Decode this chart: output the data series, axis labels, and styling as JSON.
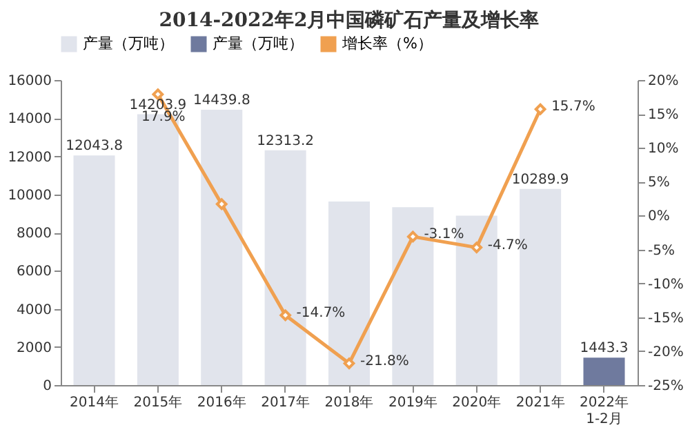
{
  "chart_data": {
    "type": "bar",
    "title": "2014-2022年2月中国磷矿石产量及增长率",
    "categories": [
      "2014年",
      "2015年",
      "2016年",
      "2017年",
      "2018年",
      "2019年",
      "2020年",
      "2021年",
      "2022年\n1-2月"
    ],
    "series": [
      {
        "name": "产量（万吨）",
        "color": "#e1e4ec",
        "values": [
          12043.8,
          14203.9,
          14439.8,
          12313.2,
          9630,
          9330,
          8890,
          10289.9,
          null
        ],
        "value_labels": [
          "12043.8",
          "14203.9",
          "14439.8",
          "12313.2",
          null,
          null,
          null,
          "10289.9",
          null
        ]
      },
      {
        "name": "产量（万吨）",
        "color": "#6f7a9e",
        "values": [
          null,
          null,
          null,
          null,
          null,
          null,
          null,
          null,
          1443.3
        ],
        "value_labels": [
          null,
          null,
          null,
          null,
          null,
          null,
          null,
          null,
          "1443.3"
        ]
      },
      {
        "name": "增长率（%）",
        "type": "line",
        "axis": "y2",
        "color": "#f0a050",
        "marker": "diamond",
        "values": [
          null,
          17.9,
          1.7,
          -14.7,
          -21.8,
          -3.1,
          -4.7,
          15.7,
          null
        ],
        "value_labels": [
          null,
          "17.9%",
          null,
          "-14.7%",
          "-21.8%",
          "-3.1%",
          "-4.7%",
          "15.7%",
          null
        ]
      }
    ],
    "ylim": [
      0,
      16000
    ],
    "yticks": [
      0,
      2000,
      4000,
      6000,
      8000,
      10000,
      12000,
      14000,
      16000
    ],
    "y2lim": [
      -25,
      20
    ],
    "y2ticks": [
      {
        "value": -25,
        "label": "-25%"
      },
      {
        "value": -20,
        "label": "-20%"
      },
      {
        "value": -15,
        "label": "-15%"
      },
      {
        "value": -10,
        "label": "-10%"
      },
      {
        "value": -5,
        "label": "-5%"
      },
      {
        "value": 0,
        "label": "0%"
      },
      {
        "value": 5,
        "label": "5%"
      },
      {
        "value": 10,
        "label": "10%"
      },
      {
        "value": 15,
        "label": "15%"
      },
      {
        "value": 20,
        "label": "20%"
      }
    ],
    "legend": "top",
    "grid": false
  }
}
